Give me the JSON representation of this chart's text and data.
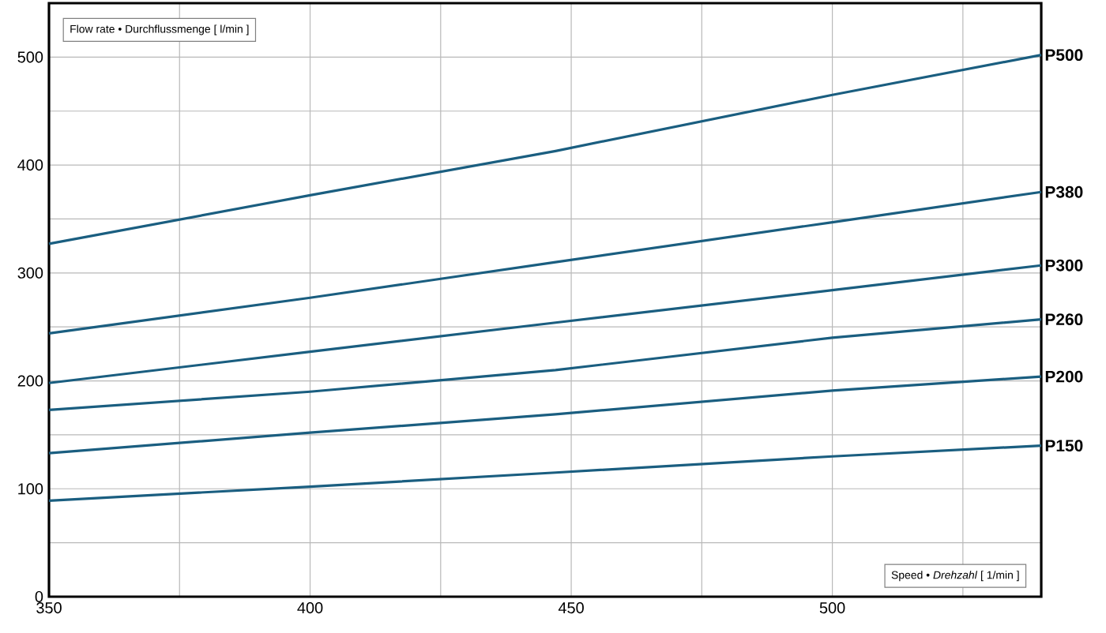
{
  "chart_data": {
    "type": "line",
    "xlabel": "Speed • *Drehzahl* [ 1/min ]",
    "ylabel": "Flow rate • Durchflussmenge [ l/min ]",
    "x": [
      350,
      400,
      447,
      500,
      540
    ],
    "series": [
      {
        "name": "P500",
        "color": "#1a5e80",
        "values": [
          327,
          372,
          413,
          465,
          502
        ]
      },
      {
        "name": "P380",
        "color": "#1a5e80",
        "values": [
          244,
          277,
          310,
          347,
          375
        ]
      },
      {
        "name": "P300",
        "color": "#1a5e80",
        "values": [
          198,
          227,
          254,
          284,
          307
        ]
      },
      {
        "name": "P260",
        "color": "#1a5e80",
        "values": [
          173,
          190,
          210,
          240,
          257
        ]
      },
      {
        "name": "P200",
        "color": "#1a5e80",
        "values": [
          133,
          152,
          169,
          191,
          204
        ]
      },
      {
        "name": "P150",
        "color": "#1a5e80",
        "values": [
          89,
          102,
          115,
          130,
          140
        ]
      }
    ],
    "xlim": [
      350,
      540
    ],
    "ylim": [
      0,
      550
    ],
    "xticks": [
      350,
      {
        "value": 375,
        "label": null
      },
      400,
      {
        "value": 425,
        "label": null
      },
      450,
      {
        "value": 475,
        "label": null
      },
      500,
      {
        "value": 525,
        "label": null
      }
    ],
    "yticks": [
      0,
      {
        "value": 50,
        "label": null
      },
      100,
      {
        "value": 150,
        "label": null
      },
      200,
      {
        "value": 250,
        "label": null
      },
      300,
      {
        "value": 350,
        "label": null
      },
      400,
      {
        "value": 450,
        "label": null
      },
      500
    ],
    "grid": true,
    "legend": false,
    "marker": "none",
    "line_style": "solid"
  }
}
